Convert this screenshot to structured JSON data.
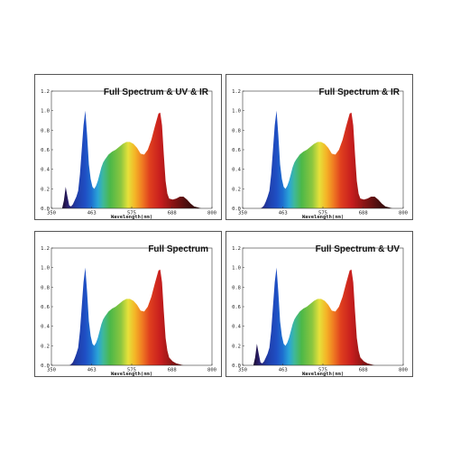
{
  "chart_data": [
    {
      "type": "area",
      "title": "Full Spectrum & UV & IR",
      "xlabel": "Wavelength(nm)",
      "ylabel": "",
      "xlim": [
        350,
        800
      ],
      "ylim": [
        0,
        1.2
      ],
      "x_ticks": [
        "350",
        "463",
        "575",
        "688",
        "800"
      ],
      "y_ticks": [
        "0.0",
        "0.2",
        "0.4",
        "0.6",
        "0.8",
        "1.0",
        "1.2"
      ],
      "grid": false,
      "fill": "spectral gradient",
      "x": [
        380,
        385,
        390,
        395,
        400,
        405,
        410,
        415,
        420,
        425,
        430,
        435,
        440,
        445,
        450,
        455,
        460,
        465,
        470,
        475,
        480,
        485,
        490,
        495,
        500,
        510,
        520,
        530,
        540,
        550,
        560,
        570,
        580,
        590,
        600,
        610,
        620,
        630,
        640,
        650,
        655,
        660,
        665,
        670,
        675,
        680,
        690,
        700,
        710,
        720,
        730,
        740,
        750,
        760,
        770,
        780
      ],
      "values": [
        0.0,
        0.08,
        0.22,
        0.12,
        0.03,
        0.02,
        0.04,
        0.08,
        0.12,
        0.18,
        0.35,
        0.6,
        0.85,
        1.0,
        0.75,
        0.45,
        0.3,
        0.22,
        0.2,
        0.23,
        0.28,
        0.35,
        0.42,
        0.47,
        0.5,
        0.55,
        0.58,
        0.6,
        0.63,
        0.66,
        0.68,
        0.68,
        0.66,
        0.62,
        0.56,
        0.55,
        0.6,
        0.7,
        0.84,
        0.97,
        0.98,
        0.85,
        0.55,
        0.28,
        0.15,
        0.1,
        0.09,
        0.1,
        0.12,
        0.12,
        0.09,
        0.05,
        0.02,
        0.01,
        0.0,
        0.0
      ]
    },
    {
      "type": "area",
      "title": "Full Spectrum & IR",
      "xlabel": "Wavelength(nm)",
      "ylabel": "",
      "xlim": [
        350,
        800
      ],
      "ylim": [
        0,
        1.2
      ],
      "x_ticks": [
        "350",
        "463",
        "575",
        "688",
        "800"
      ],
      "y_ticks": [
        "0.0",
        "0.2",
        "0.4",
        "0.6",
        "0.8",
        "1.0",
        "1.2"
      ],
      "grid": false,
      "fill": "spectral gradient",
      "x": [
        400,
        405,
        410,
        415,
        420,
        425,
        430,
        435,
        440,
        445,
        450,
        455,
        460,
        465,
        470,
        475,
        480,
        485,
        490,
        495,
        500,
        510,
        520,
        530,
        540,
        550,
        560,
        570,
        580,
        590,
        600,
        610,
        620,
        630,
        640,
        650,
        655,
        660,
        665,
        670,
        675,
        680,
        690,
        700,
        710,
        720,
        730,
        740,
        750,
        760,
        770,
        780
      ],
      "values": [
        0.0,
        0.01,
        0.03,
        0.07,
        0.12,
        0.18,
        0.35,
        0.6,
        0.85,
        1.0,
        0.75,
        0.45,
        0.3,
        0.22,
        0.2,
        0.23,
        0.28,
        0.35,
        0.42,
        0.47,
        0.5,
        0.55,
        0.58,
        0.6,
        0.63,
        0.66,
        0.68,
        0.68,
        0.66,
        0.62,
        0.56,
        0.55,
        0.6,
        0.7,
        0.84,
        0.97,
        0.98,
        0.85,
        0.55,
        0.28,
        0.15,
        0.1,
        0.09,
        0.1,
        0.12,
        0.12,
        0.09,
        0.05,
        0.02,
        0.01,
        0.0,
        0.0
      ]
    },
    {
      "type": "area",
      "title": "Full Spectrum",
      "xlabel": "Wavelength(nm)",
      "ylabel": "",
      "xlim": [
        350,
        800
      ],
      "ylim": [
        0,
        1.2
      ],
      "x_ticks": [
        "350",
        "463",
        "575",
        "688",
        "800"
      ],
      "y_ticks": [
        "0.0",
        "0.2",
        "0.4",
        "0.6",
        "0.8",
        "1.0",
        "1.2"
      ],
      "grid": false,
      "fill": "spectral gradient",
      "x": [
        400,
        405,
        410,
        415,
        420,
        425,
        430,
        435,
        440,
        445,
        450,
        455,
        460,
        465,
        470,
        475,
        480,
        485,
        490,
        495,
        500,
        510,
        520,
        530,
        540,
        550,
        560,
        570,
        580,
        590,
        600,
        610,
        620,
        630,
        640,
        650,
        655,
        660,
        665,
        670,
        675,
        680,
        690,
        700,
        710,
        720,
        730,
        740,
        750
      ],
      "values": [
        0.0,
        0.01,
        0.03,
        0.07,
        0.12,
        0.18,
        0.35,
        0.6,
        0.85,
        1.0,
        0.75,
        0.45,
        0.3,
        0.22,
        0.2,
        0.23,
        0.28,
        0.35,
        0.42,
        0.47,
        0.5,
        0.55,
        0.58,
        0.6,
        0.63,
        0.66,
        0.68,
        0.68,
        0.66,
        0.62,
        0.56,
        0.55,
        0.6,
        0.7,
        0.84,
        0.97,
        0.98,
        0.85,
        0.55,
        0.28,
        0.15,
        0.08,
        0.04,
        0.02,
        0.01,
        0.0,
        0.0,
        0.0,
        0.0
      ]
    },
    {
      "type": "area",
      "title": "Full Spectrum & UV",
      "xlabel": "Wavelength(nm)",
      "ylabel": "",
      "xlim": [
        350,
        800
      ],
      "ylim": [
        0,
        1.2
      ],
      "x_ticks": [
        "350",
        "463",
        "575",
        "688",
        "800"
      ],
      "y_ticks": [
        "0.0",
        "0.2",
        "0.4",
        "0.6",
        "0.8",
        "1.0",
        "1.2"
      ],
      "grid": false,
      "fill": "spectral gradient",
      "x": [
        380,
        385,
        390,
        395,
        400,
        405,
        410,
        415,
        420,
        425,
        430,
        435,
        440,
        445,
        450,
        455,
        460,
        465,
        470,
        475,
        480,
        485,
        490,
        495,
        500,
        510,
        520,
        530,
        540,
        550,
        560,
        570,
        580,
        590,
        600,
        610,
        620,
        630,
        640,
        650,
        655,
        660,
        665,
        670,
        675,
        680,
        690,
        700,
        710,
        720,
        730
      ],
      "values": [
        0.0,
        0.08,
        0.22,
        0.12,
        0.03,
        0.02,
        0.04,
        0.08,
        0.12,
        0.18,
        0.35,
        0.6,
        0.85,
        1.0,
        0.75,
        0.45,
        0.3,
        0.22,
        0.2,
        0.23,
        0.28,
        0.35,
        0.42,
        0.47,
        0.5,
        0.55,
        0.58,
        0.6,
        0.63,
        0.66,
        0.68,
        0.68,
        0.66,
        0.62,
        0.56,
        0.55,
        0.6,
        0.7,
        0.84,
        0.97,
        0.98,
        0.85,
        0.55,
        0.28,
        0.15,
        0.08,
        0.04,
        0.02,
        0.01,
        0.0,
        0.0
      ]
    }
  ]
}
